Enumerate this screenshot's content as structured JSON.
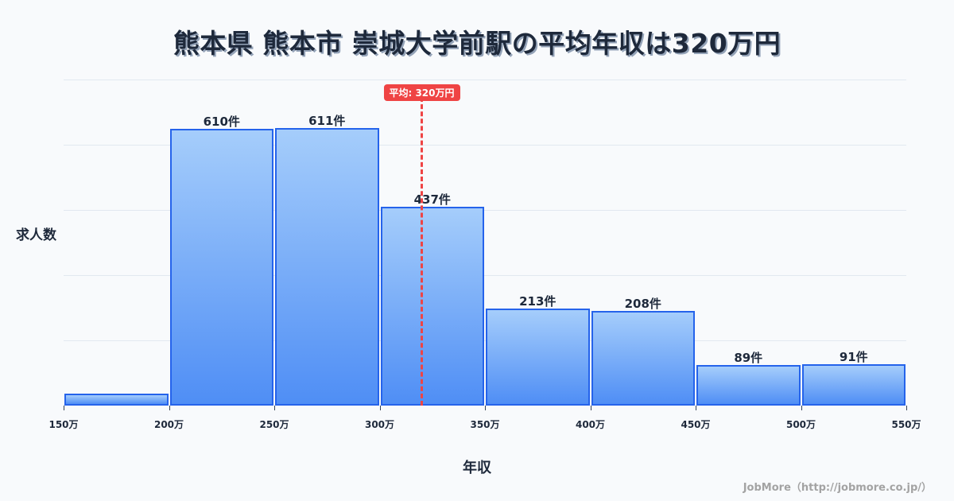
{
  "title": "熊本県 熊本市 崇城大学前駅の平均年収は320万円",
  "average_badge": "平均: 320万円",
  "ylabel": "求人数",
  "xlabel": "年収",
  "credit": "JobMore（http://jobmore.co.jp/）",
  "colors": {
    "bar_fill_top": "#a5cdfb",
    "bar_fill_bottom": "#4f8ef5",
    "bar_border": "#2563eb",
    "average_line": "#ef4444",
    "text": "#1e293b",
    "background": "#f8fafc"
  },
  "chart_data": {
    "type": "bar",
    "title": "熊本県 熊本市 崇城大学前駅の平均年収は320万円",
    "xlabel": "年収",
    "ylabel": "求人数",
    "x_ticks": [
      "150万",
      "200万",
      "250万",
      "300万",
      "350万",
      "400万",
      "450万",
      "500万",
      "550万"
    ],
    "categories": [
      "150-200万",
      "200-250万",
      "250-300万",
      "300-350万",
      "350-400万",
      "400-450万",
      "450-500万",
      "500-550万"
    ],
    "values": [
      26,
      610,
      611,
      437,
      213,
      208,
      89,
      91
    ],
    "value_labels": [
      "",
      "610件",
      "611件",
      "437件",
      "213件",
      "208件",
      "89件",
      "91件"
    ],
    "average": 320,
    "average_label": "平均: 320万円",
    "ylim": [
      0,
      718
    ],
    "grid": true,
    "legend": "none"
  }
}
